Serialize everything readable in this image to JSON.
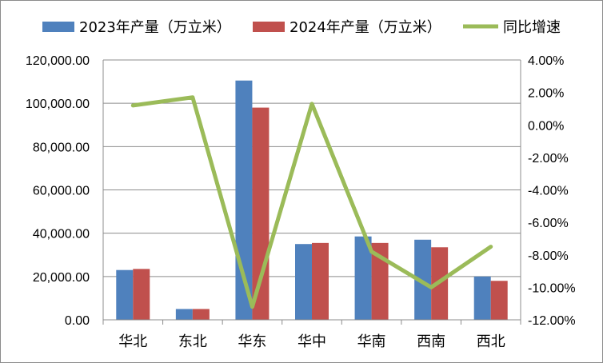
{
  "chart_data": {
    "type": "bar",
    "title": "",
    "categories": [
      "华北",
      "东北",
      "华东",
      "华中",
      "华南",
      "西南",
      "西北"
    ],
    "series": [
      {
        "name": "2023年产量（万立米）",
        "kind": "bar",
        "axis": "left",
        "color": "#4F81BD",
        "values": [
          23000,
          5000,
          110500,
          35000,
          38500,
          37000,
          20000
        ]
      },
      {
        "name": "2024年产量（万立米）",
        "kind": "bar",
        "axis": "left",
        "color": "#C0504D",
        "values": [
          23500,
          5000,
          98000,
          35500,
          35500,
          33500,
          18000
        ]
      },
      {
        "name": "同比增速",
        "kind": "line",
        "axis": "right",
        "color": "#9BBB59",
        "values": [
          1.2,
          1.7,
          -11.2,
          1.3,
          -7.8,
          -10.0,
          -7.5
        ]
      }
    ],
    "left_axis": {
      "min": 0,
      "max": 120000,
      "ticks": [
        "0.00",
        "20,000.00",
        "40,000.00",
        "60,000.00",
        "80,000.00",
        "100,000.00",
        "120,000.00"
      ]
    },
    "right_axis": {
      "min": -12,
      "max": 4,
      "unit": "%",
      "ticks": [
        "-12.00%",
        "-10.00%",
        "-8.00%",
        "-6.00%",
        "-4.00%",
        "-2.00%",
        "0.00%",
        "2.00%",
        "4.00%"
      ]
    },
    "grid": true,
    "legend_position": "top"
  }
}
